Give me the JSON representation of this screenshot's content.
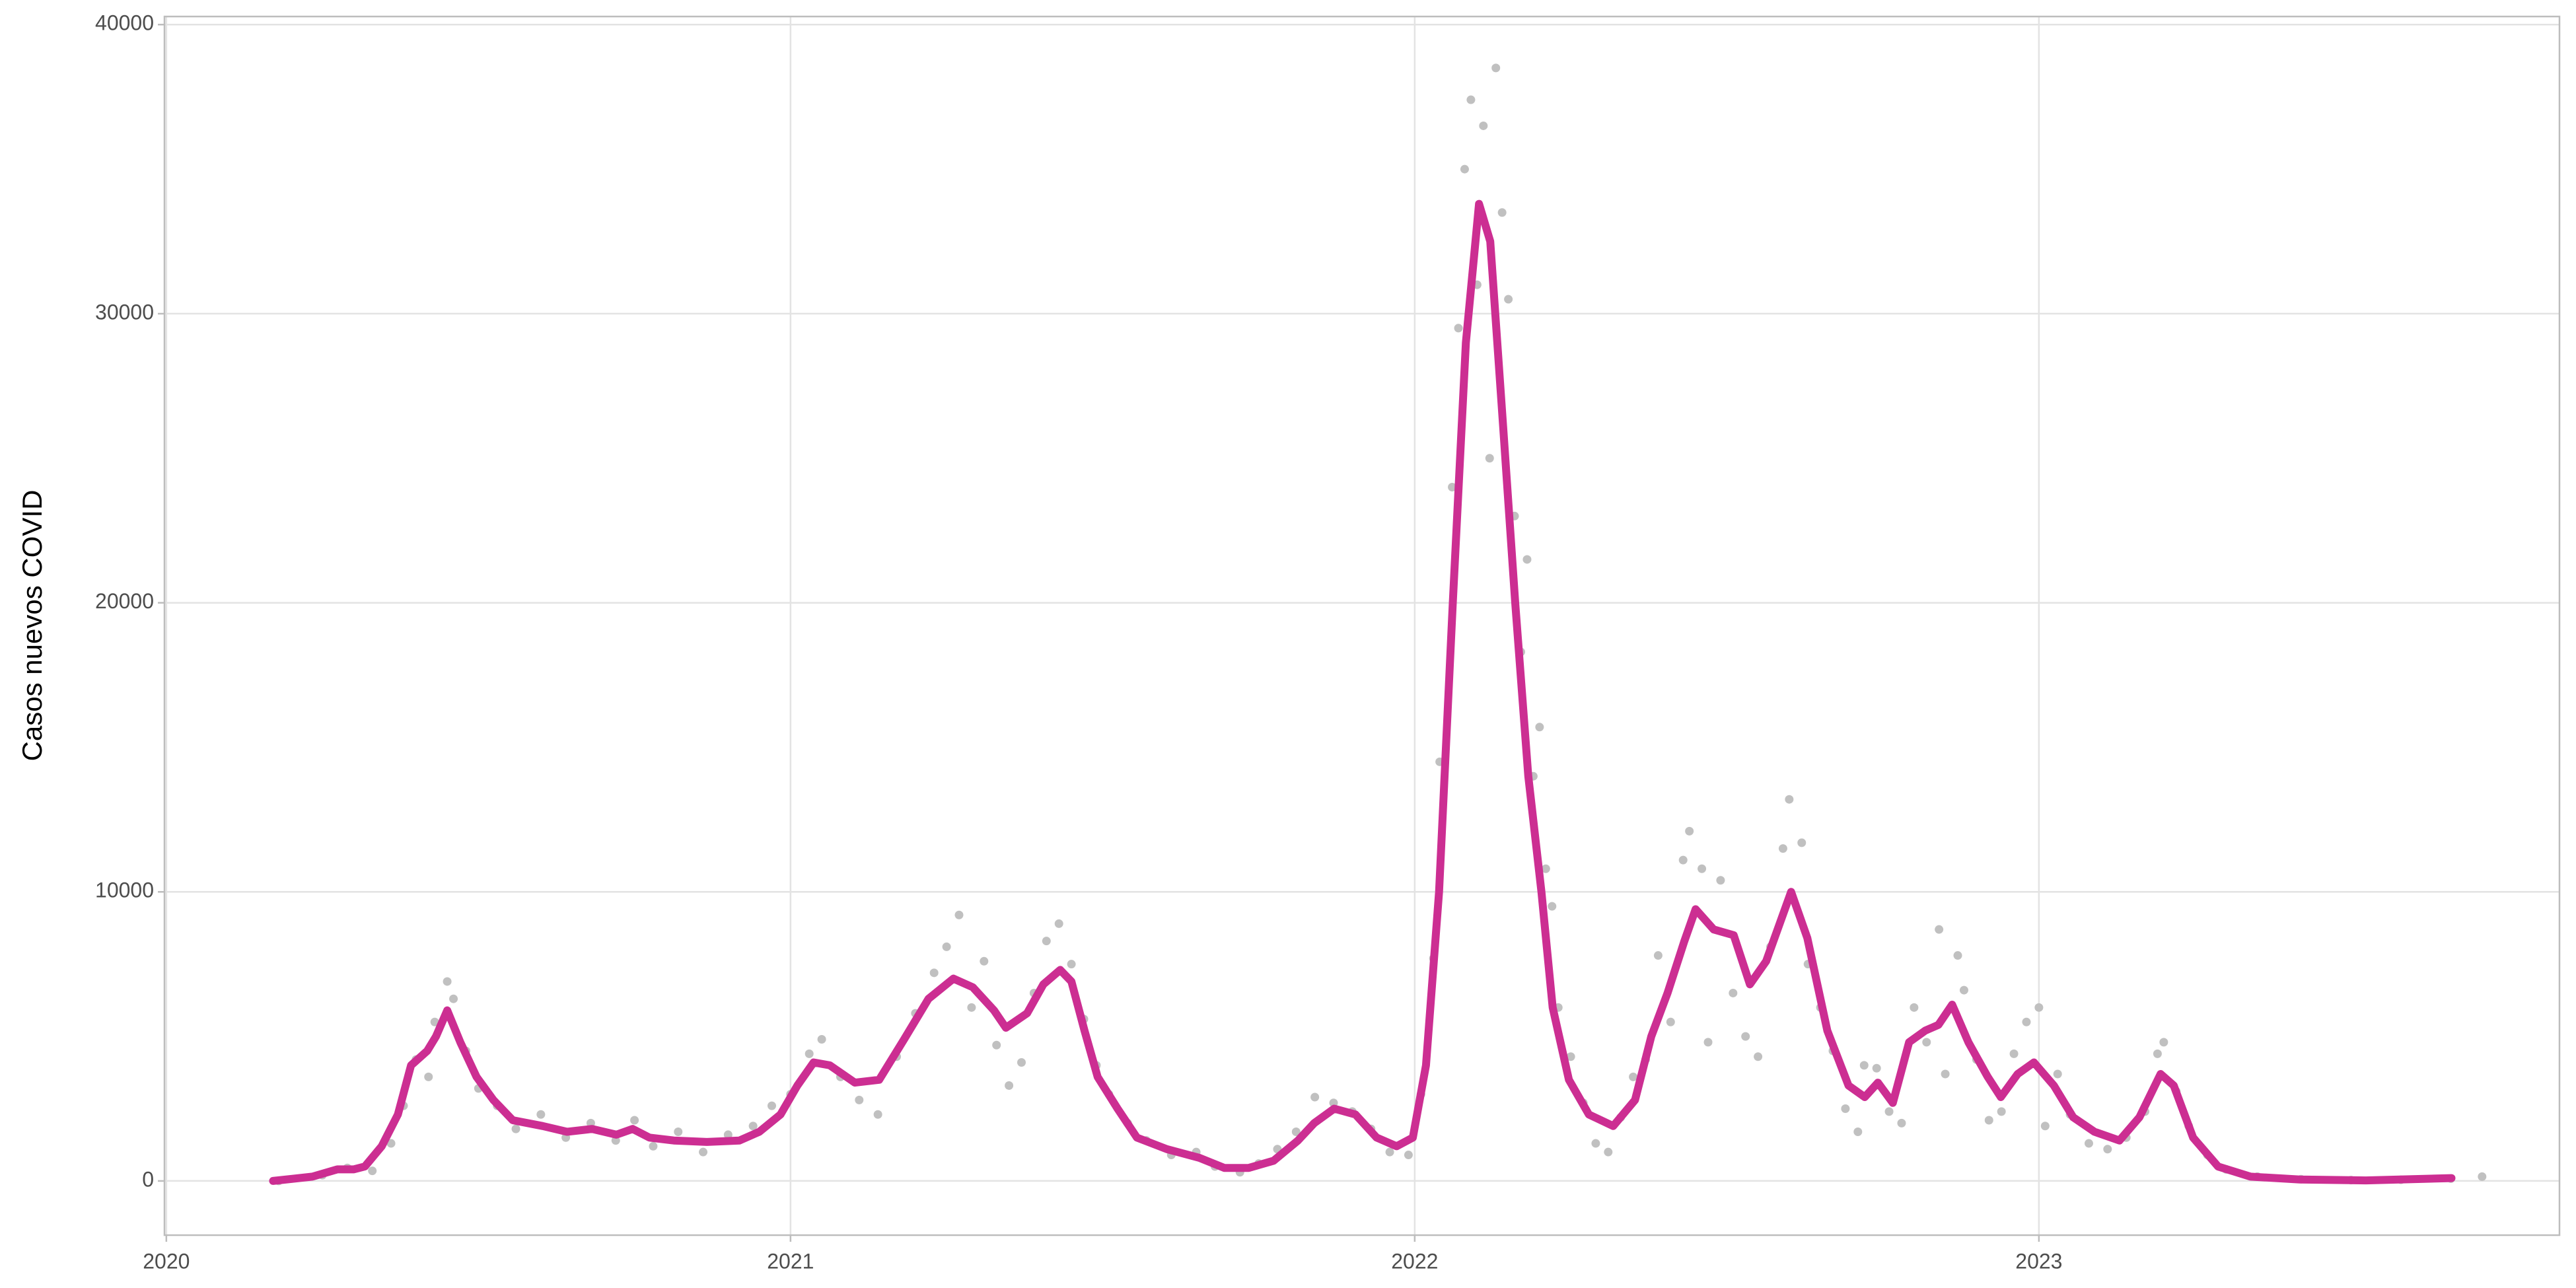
{
  "chart_data": {
    "type": "line",
    "y_label": "Casos nuevos COVID",
    "xlim": [
      2019.997,
      2023.834
    ],
    "xticks": [
      2020,
      2021,
      2022,
      2023
    ],
    "ylim": [
      -1875,
      40280
    ],
    "yticks": [
      0,
      10000,
      20000,
      30000,
      40000
    ],
    "grid": true,
    "series": [
      {
        "type": "scatter",
        "color": "#c0c0c0",
        "x": [
          2020.18,
          2020.25,
          2020.29,
          2020.33,
          2020.36,
          2020.38,
          2020.4,
          2020.42,
          2020.43,
          2020.45,
          2020.46,
          2020.48,
          2020.5,
          2020.53,
          2020.56,
          2020.6,
          2020.64,
          2020.68,
          2020.72,
          2020.75,
          2020.78,
          2020.82,
          2020.86,
          2020.9,
          2020.94,
          2020.97,
          2021.0,
          2021.03,
          2021.05,
          2021.08,
          2021.11,
          2021.14,
          2021.17,
          2021.2,
          2021.23,
          2021.25,
          2021.27,
          2021.29,
          2021.31,
          2021.33,
          2021.35,
          2021.37,
          2021.39,
          2021.41,
          2021.43,
          2021.45,
          2021.47,
          2021.49,
          2021.51,
          2021.54,
          2021.57,
          2021.61,
          2021.65,
          2021.68,
          2021.72,
          2021.75,
          2021.78,
          2021.81,
          2021.84,
          2021.87,
          2021.9,
          2021.93,
          2021.96,
          2021.99,
          2022.01,
          2022.03,
          2022.04,
          2022.06,
          2022.07,
          2022.08,
          2022.09,
          2022.1,
          2022.11,
          2022.12,
          2022.13,
          2022.14,
          2022.15,
          2022.16,
          2022.17,
          2022.18,
          2022.19,
          2022.2,
          2022.21,
          2022.22,
          2022.23,
          2022.25,
          2022.27,
          2022.29,
          2022.31,
          2022.33,
          2022.35,
          2022.37,
          2022.39,
          2022.41,
          2022.43,
          2022.44,
          2022.46,
          2022.47,
          2022.49,
          2022.51,
          2022.53,
          2022.55,
          2022.57,
          2022.59,
          2022.6,
          2022.62,
          2022.63,
          2022.65,
          2022.67,
          2022.69,
          2022.71,
          2022.72,
          2022.74,
          2022.76,
          2022.78,
          2022.8,
          2022.82,
          2022.84,
          2022.85,
          2022.87,
          2022.88,
          2022.9,
          2022.92,
          2022.94,
          2022.96,
          2022.98,
          2023.0,
          2023.01,
          2023.03,
          2023.05,
          2023.08,
          2023.11,
          2023.14,
          2023.17,
          2023.19,
          2023.2,
          2023.22,
          2023.24,
          2023.27,
          2023.3,
          2023.35,
          2023.42,
          2023.5,
          2023.58,
          2023.66,
          2023.71
        ],
        "values": [
          0,
          200,
          450,
          350,
          1300,
          2600,
          4200,
          3600,
          5500,
          6900,
          6300,
          4500,
          3200,
          2600,
          1800,
          2300,
          1500,
          2000,
          1400,
          2100,
          1200,
          1700,
          1000,
          1600,
          1900,
          2600,
          3000,
          4400,
          4900,
          3600,
          2800,
          2300,
          4300,
          5800,
          7200,
          8100,
          9200,
          6000,
          7600,
          4700,
          3300,
          4100,
          6500,
          8300,
          8900,
          7500,
          5600,
          4000,
          3000,
          2000,
          1400,
          900,
          1000,
          500,
          300,
          600,
          1100,
          1700,
          2900,
          2700,
          2400,
          1800,
          1000,
          900,
          3000,
          7700,
          14500,
          24000,
          29500,
          35000,
          37400,
          31000,
          36500,
          25000,
          38500,
          33500,
          30500,
          23000,
          18300,
          21500,
          14000,
          15700,
          10800,
          9500,
          6000,
          4300,
          2700,
          1300,
          1000,
          2200,
          3600,
          4200,
          7800,
          5500,
          11100,
          12100,
          10800,
          4800,
          10400,
          6500,
          5000,
          4300,
          8100,
          11500,
          13200,
          11700,
          7500,
          6000,
          4500,
          2500,
          1700,
          4000,
          3900,
          2400,
          2000,
          6000,
          4800,
          8700,
          3700,
          7800,
          6600,
          4200,
          2100,
          2400,
          4400,
          5500,
          6000,
          1900,
          3700,
          2300,
          1300,
          1100,
          1500,
          2400,
          4400,
          4800,
          3100,
          1900,
          900,
          400,
          150,
          60,
          30,
          40,
          80,
          150
        ]
      },
      {
        "type": "line",
        "color": "#cc2e92",
        "x": [
          2020.171,
          2020.234,
          2020.274,
          2020.3,
          2020.318,
          2020.345,
          2020.371,
          2020.392,
          2020.418,
          2020.432,
          2020.45,
          2020.471,
          2020.497,
          2020.524,
          2020.555,
          2020.603,
          2020.642,
          2020.682,
          2020.721,
          2020.747,
          2020.774,
          2020.813,
          2020.866,
          2020.918,
          2020.95,
          2020.984,
          2021.011,
          2021.037,
          2021.063,
          2021.103,
          2021.142,
          2021.182,
          2021.221,
          2021.261,
          2021.292,
          2021.326,
          2021.345,
          2021.379,
          2021.405,
          2021.432,
          2021.45,
          2021.471,
          2021.492,
          2021.524,
          2021.555,
          2021.603,
          2021.655,
          2021.695,
          2021.734,
          2021.774,
          2021.813,
          2021.839,
          2021.871,
          2021.905,
          2021.939,
          2021.971,
          2021.997,
          2022.018,
          2022.039,
          2022.061,
          2022.082,
          2022.103,
          2022.121,
          2022.142,
          2022.161,
          2022.182,
          2022.203,
          2022.221,
          2022.247,
          2022.279,
          2022.318,
          2022.353,
          2022.379,
          2022.405,
          2022.432,
          2022.45,
          2022.479,
          2022.511,
          2022.537,
          2022.563,
          2022.603,
          2022.629,
          2022.661,
          2022.695,
          2022.721,
          2022.742,
          2022.766,
          2022.792,
          2022.818,
          2022.839,
          2022.861,
          2022.887,
          2022.918,
          2022.939,
          2022.966,
          2022.992,
          2023.024,
          2023.055,
          2023.089,
          2023.129,
          2023.161,
          2023.195,
          2023.216,
          2023.247,
          2023.287,
          2023.339,
          2023.418,
          2023.524,
          2023.661
        ],
        "values": [
          0,
          150,
          400,
          400,
          500,
          1200,
          2300,
          4000,
          4500,
          5000,
          5900,
          4800,
          3600,
          2800,
          2100,
          1900,
          1700,
          1800,
          1600,
          1800,
          1500,
          1400,
          1350,
          1400,
          1700,
          2300,
          3300,
          4100,
          4000,
          3400,
          3500,
          4900,
          6300,
          7000,
          6700,
          5900,
          5300,
          5800,
          6800,
          7300,
          6900,
          5200,
          3600,
          2500,
          1500,
          1100,
          800,
          450,
          450,
          700,
          1400,
          2000,
          2500,
          2300,
          1500,
          1200,
          1500,
          4000,
          10000,
          20000,
          29000,
          33800,
          32500,
          26000,
          20000,
          14000,
          10000,
          6000,
          3500,
          2300,
          1900,
          2800,
          5000,
          6500,
          8300,
          9400,
          8700,
          8500,
          6800,
          7600,
          10000,
          8400,
          5200,
          3300,
          2900,
          3400,
          2700,
          4800,
          5200,
          5400,
          6100,
          4800,
          3600,
          2900,
          3700,
          4100,
          3300,
          2200,
          1700,
          1400,
          2200,
          3700,
          3300,
          1500,
          500,
          150,
          50,
          20,
          100
        ]
      }
    ]
  }
}
